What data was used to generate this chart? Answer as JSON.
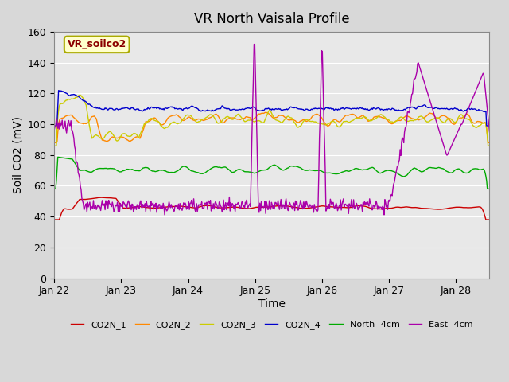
{
  "title": "VR North Vaisala Profile",
  "ylabel": "Soil CO2 (mV)",
  "xlabel": "Time",
  "annotation": "VR_soilco2",
  "ylim": [
    0,
    160
  ],
  "yticks": [
    0,
    20,
    40,
    60,
    80,
    100,
    120,
    140,
    160
  ],
  "xlim_start": 22.0,
  "xlim_end": 28.5,
  "xtick_labels": [
    "Jan 22",
    "Jan 23",
    "Jan 24",
    "Jan 25",
    "Jan 26",
    "Jan 27",
    "Jan 28"
  ],
  "xtick_positions": [
    22,
    23,
    24,
    25,
    26,
    27,
    28
  ],
  "bg_color": "#e8e8e8",
  "line_colors": {
    "CO2N_1": "#cc0000",
    "CO2N_2": "#ff8800",
    "CO2N_3": "#cccc00",
    "CO2N_4": "#0000cc",
    "North_4cm": "#00aa00",
    "East_4cm": "#aa00aa"
  },
  "legend_labels": [
    "CO2N_1",
    "CO2N_2",
    "CO2N_3",
    "CO2N_4",
    "North -4cm",
    "East -4cm"
  ],
  "linewidth": 1.0,
  "title_fontsize": 12,
  "label_fontsize": 10,
  "tick_fontsize": 9
}
